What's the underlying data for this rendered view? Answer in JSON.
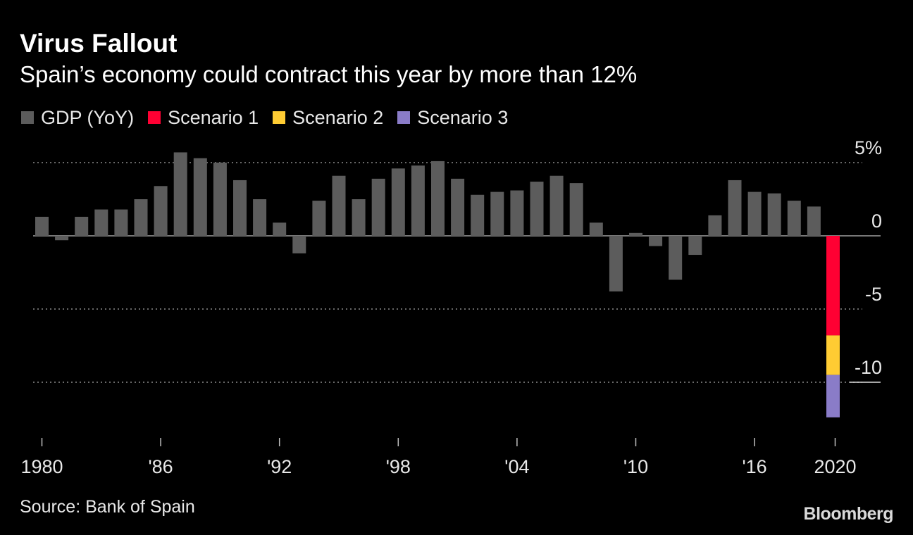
{
  "header": {
    "title": "Virus Fallout",
    "subtitle": "Spain’s economy could contract this year by more than 12%"
  },
  "footer": {
    "source": "Source: Bank of Spain",
    "brand": "Bloomberg"
  },
  "colors": {
    "background": "#000000",
    "gdp": "#5c5c5c",
    "scenario1": "#ff0033",
    "scenario2": "#ffcc33",
    "scenario3": "#8a7cc8",
    "gridline": "#8c8c8c",
    "axis": "#bfbfbf",
    "text": "#e8e8e8"
  },
  "chart_data": {
    "type": "bar",
    "x": [
      1980,
      1981,
      1982,
      1983,
      1984,
      1985,
      1986,
      1987,
      1988,
      1989,
      1990,
      1991,
      1992,
      1993,
      1994,
      1995,
      1996,
      1997,
      1998,
      1999,
      2000,
      2001,
      2002,
      2003,
      2004,
      2005,
      2006,
      2007,
      2008,
      2009,
      2010,
      2011,
      2012,
      2013,
      2014,
      2015,
      2016,
      2017,
      2018,
      2019
    ],
    "series": [
      {
        "name": "GDP (YoY)",
        "color": "#5c5c5c",
        "values": [
          1.3,
          -0.3,
          1.3,
          1.8,
          1.8,
          2.5,
          3.4,
          5.7,
          5.3,
          5.0,
          3.8,
          2.5,
          0.9,
          -1.2,
          2.4,
          4.1,
          2.5,
          3.9,
          4.6,
          4.8,
          5.1,
          3.9,
          2.8,
          3.0,
          3.1,
          3.7,
          4.1,
          3.6,
          0.9,
          -3.8,
          0.2,
          -0.7,
          -3.0,
          -1.3,
          1.4,
          3.8,
          3.0,
          2.9,
          2.4,
          2.0
        ]
      }
    ],
    "scenarios": {
      "year": 2020,
      "series": [
        {
          "name": "Scenario 1",
          "color": "#ff0033",
          "from": 0,
          "to": -6.8
        },
        {
          "name": "Scenario 2",
          "color": "#ffcc33",
          "from": -6.8,
          "to": -9.5
        },
        {
          "name": "Scenario 3",
          "color": "#8a7cc8",
          "from": -9.5,
          "to": -12.4
        }
      ]
    },
    "title": "Virus Fallout",
    "subtitle": "Spain’s economy could contract this year by more than 12%",
    "ylim": [
      -13.5,
      6
    ],
    "yticks": [
      {
        "value": 5,
        "label": "5%"
      },
      {
        "value": 0,
        "label": "0"
      },
      {
        "value": -5,
        "label": "-5"
      },
      {
        "value": -10,
        "label": "-10"
      }
    ],
    "xticks": [
      {
        "value": 1980,
        "label": "1980"
      },
      {
        "value": 1986,
        "label": "'86"
      },
      {
        "value": 1992,
        "label": "'92"
      },
      {
        "value": 1998,
        "label": "'98"
      },
      {
        "value": 2004,
        "label": "'04"
      },
      {
        "value": 2010,
        "label": "'10"
      },
      {
        "value": 2016,
        "label": "'16"
      },
      {
        "value": 2020,
        "label": "2020"
      }
    ],
    "grid": "horizontal-dotted",
    "legend_position": "top-left",
    "legend": [
      {
        "label": "GDP (YoY)",
        "color": "#5c5c5c"
      },
      {
        "label": "Scenario 1",
        "color": "#ff0033"
      },
      {
        "label": "Scenario 2",
        "color": "#ffcc33"
      },
      {
        "label": "Scenario 3",
        "color": "#8a7cc8"
      }
    ]
  }
}
